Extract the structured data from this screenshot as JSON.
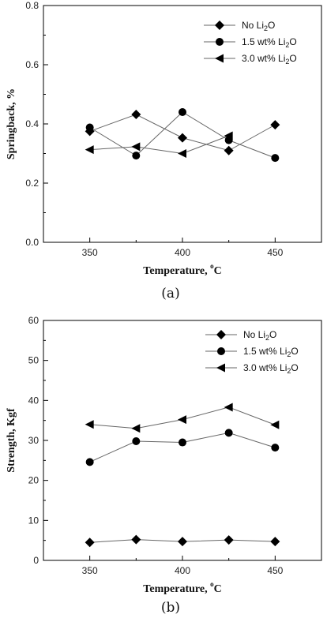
{
  "chart_data": [
    {
      "type": "line",
      "caption": "(a)",
      "xlabel": "Temperature, °C",
      "ylabel": "Springback, %",
      "xlim": [
        325,
        475
      ],
      "ylim": [
        0.0,
        0.8
      ],
      "xticks": [
        "350",
        "400",
        "450"
      ],
      "yticks": [
        "0.0",
        "0.2",
        "0.4",
        "0.6",
        "0.8"
      ],
      "legend_position": "top-right",
      "grid": false,
      "series": [
        {
          "name": "No Li2O",
          "marker": "diamond",
          "x": [
            350,
            375,
            400,
            425,
            450
          ],
          "y": [
            0.375,
            0.432,
            0.353,
            0.31,
            0.397
          ]
        },
        {
          "name": "1.5 wt% Li2O",
          "marker": "circle",
          "x": [
            350,
            375,
            400,
            425,
            450
          ],
          "y": [
            0.388,
            0.293,
            0.44,
            0.345,
            0.285
          ]
        },
        {
          "name": "3.0 wt% Li2O",
          "marker": "triangle-left",
          "x": [
            350,
            375,
            400,
            425
          ],
          "y": [
            0.313,
            0.323,
            0.3,
            0.36
          ]
        }
      ]
    },
    {
      "type": "line",
      "caption": "(b)",
      "xlabel": "Temperature, °C",
      "ylabel": "Strength, Kgf",
      "xlim": [
        325,
        475
      ],
      "ylim": [
        0,
        60
      ],
      "xticks": [
        "350",
        "400",
        "450"
      ],
      "yticks": [
        "0",
        "10",
        "20",
        "30",
        "40",
        "50",
        "60"
      ],
      "legend_position": "top-right",
      "grid": false,
      "series": [
        {
          "name": "No Li2O",
          "marker": "diamond",
          "x": [
            350,
            375,
            400,
            425,
            450
          ],
          "y": [
            4.5,
            5.2,
            4.7,
            5.1,
            4.7
          ]
        },
        {
          "name": "1.5 wt% Li2O",
          "marker": "circle",
          "x": [
            350,
            375,
            400,
            425,
            450
          ],
          "y": [
            24.6,
            29.8,
            29.5,
            31.9,
            28.2
          ]
        },
        {
          "name": "3.0 wt% Li2O",
          "marker": "triangle-left",
          "x": [
            350,
            375,
            400,
            425,
            450
          ],
          "y": [
            34.0,
            33.0,
            35.2,
            38.3,
            33.9
          ]
        }
      ]
    }
  ]
}
